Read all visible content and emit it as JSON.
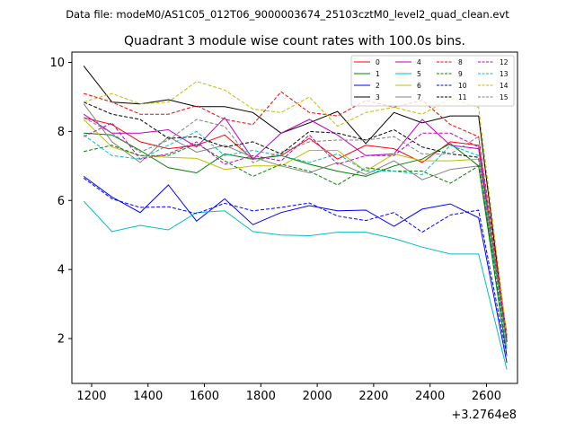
{
  "chart_data": {
    "type": "line",
    "suptitle": "Data file: modeM0/AS1C05_012T06_9000003674_25103cztM0_level2_quad_clean.evt",
    "title": "Quadrant 3 module wise count rates with 100.0s bins.",
    "xlabel": "",
    "ylabel": "",
    "offset_text": "+3.2764e8",
    "xlim": [
      1130,
      2710
    ],
    "ylim": [
      0.7,
      10.3
    ],
    "xticks": [
      1200,
      1400,
      1600,
      1800,
      2000,
      2200,
      2400,
      2600
    ],
    "yticks": [
      2,
      4,
      6,
      8,
      10
    ],
    "x": [
      1172,
      1272,
      1372,
      1472,
      1572,
      1672,
      1772,
      1872,
      1972,
      2072,
      2172,
      2272,
      2372,
      2472,
      2572,
      2672
    ],
    "legend_position": "top-right",
    "series": [
      {
        "name": "0",
        "color": "#ff0000",
        "dash": "solid",
        "values": [
          8.4,
          8.2,
          7.7,
          7.5,
          7.6,
          7.9,
          7.2,
          7.3,
          7.8,
          7.2,
          7.6,
          7.5,
          7.1,
          7.7,
          7.6,
          2.0
        ]
      },
      {
        "name": "1",
        "color": "#008000",
        "dash": "solid",
        "values": [
          7.95,
          7.9,
          7.45,
          6.95,
          6.8,
          7.35,
          7.2,
          7.3,
          7.05,
          6.85,
          6.7,
          7.0,
          7.2,
          7.65,
          7.0,
          1.5
        ]
      },
      {
        "name": "2",
        "color": "#0000ff",
        "dash": "solid",
        "values": [
          6.7,
          6.1,
          5.65,
          6.45,
          5.4,
          6.05,
          5.3,
          5.65,
          5.85,
          5.7,
          5.72,
          5.25,
          5.75,
          5.9,
          5.5,
          1.3
        ]
      },
      {
        "name": "3",
        "color": "#000000",
        "dash": "solid",
        "values": [
          9.9,
          8.85,
          8.8,
          8.92,
          8.72,
          8.72,
          8.55,
          7.95,
          8.25,
          8.58,
          7.65,
          8.55,
          8.25,
          8.45,
          8.45,
          1.9
        ]
      },
      {
        "name": "4",
        "color": "#bf00bf",
        "dash": "solid",
        "values": [
          8.5,
          7.95,
          7.95,
          8.05,
          7.55,
          8.4,
          7.2,
          7.95,
          8.35,
          7.9,
          7.3,
          7.35,
          8.35,
          7.6,
          7.5,
          1.9
        ]
      },
      {
        "name": "5",
        "color": "#00bfbf",
        "dash": "solid",
        "values": [
          5.98,
          5.1,
          5.28,
          5.15,
          5.65,
          5.7,
          5.1,
          5.0,
          4.98,
          5.08,
          5.08,
          4.9,
          4.65,
          4.45,
          4.45,
          1.1
        ]
      },
      {
        "name": "6",
        "color": "#bfbf00",
        "dash": "solid",
        "values": [
          8.35,
          7.55,
          7.3,
          7.25,
          7.22,
          6.9,
          7.0,
          7.0,
          7.45,
          7.45,
          6.85,
          7.35,
          7.15,
          7.15,
          7.2,
          2.2
        ]
      },
      {
        "name": "7",
        "color": "#808080",
        "dash": "solid",
        "values": [
          8.8,
          7.7,
          7.1,
          7.85,
          7.4,
          7.6,
          7.25,
          7.0,
          6.8,
          7.1,
          6.75,
          7.15,
          6.6,
          6.9,
          7.0,
          2.0
        ]
      },
      {
        "name": "8",
        "color": "#ff0000",
        "dash": "dashed",
        "values": [
          9.1,
          8.85,
          8.5,
          8.5,
          8.75,
          8.35,
          8.2,
          9.15,
          8.55,
          8.45,
          8.9,
          8.7,
          8.9,
          8.2,
          7.85,
          2.1
        ]
      },
      {
        "name": "9",
        "color": "#008000",
        "dash": "dashed",
        "values": [
          7.42,
          7.6,
          7.3,
          7.3,
          7.65,
          7.15,
          6.7,
          7.05,
          6.85,
          6.45,
          6.95,
          6.85,
          6.85,
          6.5,
          7.0,
          1.7
        ]
      },
      {
        "name": "10",
        "color": "#0000ff",
        "dash": "dashed",
        "values": [
          6.65,
          6.05,
          5.8,
          5.82,
          5.62,
          5.92,
          5.7,
          5.8,
          5.93,
          5.55,
          5.42,
          5.65,
          5.08,
          5.58,
          5.72,
          1.5
        ]
      },
      {
        "name": "11",
        "color": "#000000",
        "dash": "dashed",
        "values": [
          8.85,
          8.5,
          8.35,
          7.8,
          7.85,
          7.55,
          7.7,
          7.35,
          8.0,
          7.95,
          7.75,
          8.05,
          7.55,
          7.35,
          7.25,
          1.9
        ]
      },
      {
        "name": "12",
        "color": "#bf00bf",
        "dash": "dashed",
        "values": [
          7.85,
          8.25,
          7.2,
          7.35,
          7.7,
          7.05,
          7.3,
          7.15,
          7.9,
          7.05,
          7.3,
          7.3,
          7.95,
          7.95,
          7.55,
          2.0
        ]
      },
      {
        "name": "13",
        "color": "#00bfbf",
        "dash": "dashed",
        "values": [
          7.9,
          7.3,
          7.2,
          7.6,
          8.0,
          7.3,
          7.45,
          7.3,
          7.1,
          7.35,
          6.85,
          6.85,
          6.75,
          7.6,
          7.3,
          1.8
        ]
      },
      {
        "name": "14",
        "color": "#bfbf00",
        "dash": "dashed",
        "values": [
          8.85,
          9.1,
          8.8,
          8.85,
          9.45,
          9.2,
          8.65,
          8.55,
          9.0,
          8.15,
          8.55,
          8.7,
          8.5,
          8.95,
          8.7,
          2.1
        ]
      },
      {
        "name": "15",
        "color": "#808080",
        "dash": "dashed",
        "values": [
          8.4,
          7.95,
          7.4,
          7.75,
          8.35,
          8.15,
          7.1,
          7.4,
          7.7,
          7.75,
          7.75,
          7.85,
          7.35,
          7.35,
          7.85,
          1.7
        ]
      }
    ]
  }
}
